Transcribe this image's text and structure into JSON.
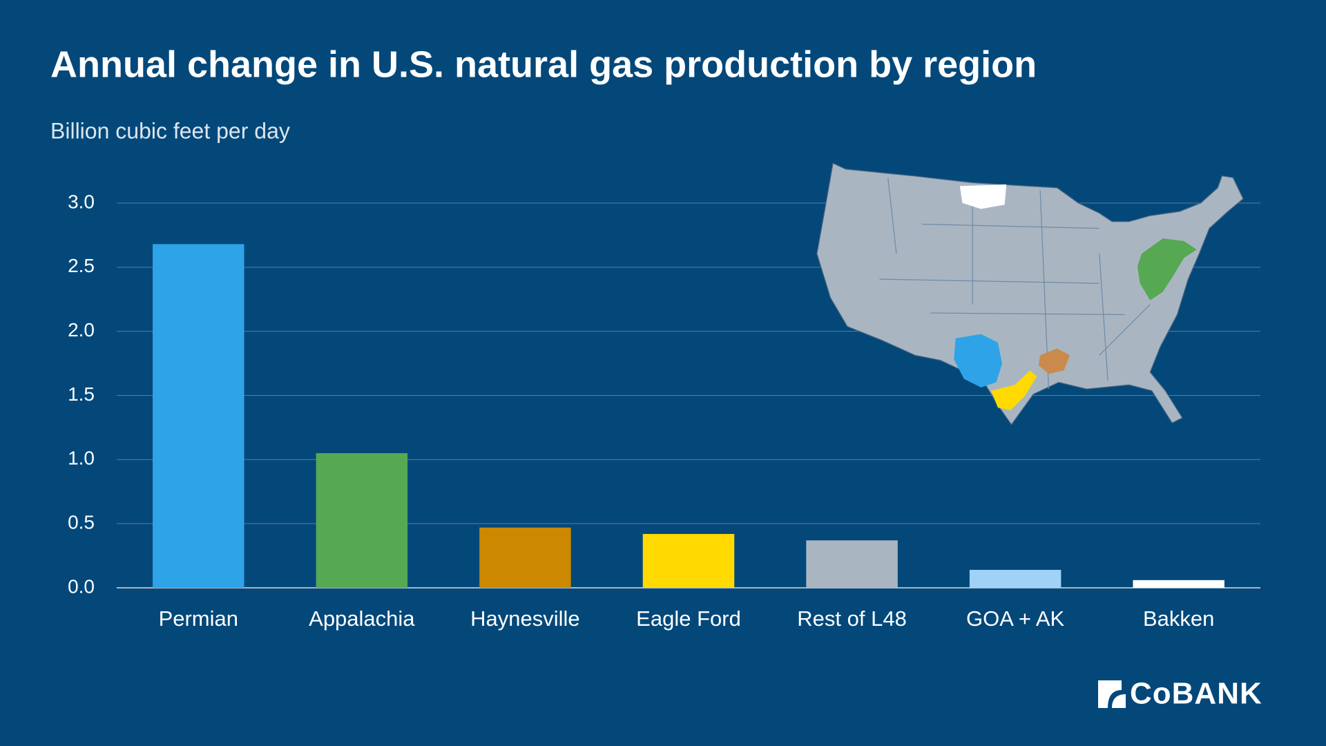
{
  "chart_data": {
    "type": "bar",
    "title": "Annual change in U.S. natural gas production by region",
    "subtitle": "Billion cubic feet per day",
    "categories": [
      "Permian",
      "Appalachia",
      "Haynesville",
      "Eagle Ford",
      "Rest of L48",
      "GOA + AK",
      "Bakken"
    ],
    "values": [
      2.68,
      1.05,
      0.47,
      0.42,
      0.37,
      0.14,
      0.06
    ],
    "colors": [
      "#2ea3e8",
      "#56a852",
      "#cc8800",
      "#ffd900",
      "#a9b6c2",
      "#9fd2f6",
      "#ffffff"
    ],
    "ylim": [
      0,
      3
    ],
    "yticks": [
      {
        "value": 0,
        "label": "0.0"
      },
      0.5,
      {
        "value": 1,
        "label": "1.0"
      },
      1.5,
      {
        "value": 2,
        "label": "2.0"
      },
      2.5,
      {
        "value": 3,
        "label": "3.0"
      }
    ],
    "grid": true
  },
  "logo": "CoBANK"
}
